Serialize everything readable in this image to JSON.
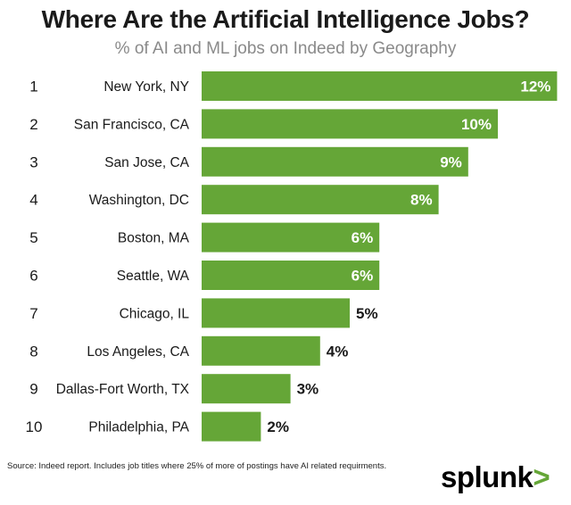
{
  "chart_data": {
    "type": "bar",
    "orientation": "horizontal",
    "title": "Where Are the Artificial Intelligence Jobs?",
    "subtitle": "% of AI and ML jobs on Indeed by Geography",
    "ranks": [
      "1",
      "2",
      "3",
      "4",
      "5",
      "6",
      "7",
      "8",
      "9",
      "10"
    ],
    "categories": [
      "New York, NY",
      "San Francisco, CA",
      "San Jose, CA",
      "Washington, DC",
      "Boston, MA",
      "Seattle, WA",
      "Chicago, IL",
      "Los Angeles, CA",
      "Dallas-Fort Worth, TX",
      "Philadelphia, PA"
    ],
    "values": [
      12,
      10,
      9,
      8,
      6,
      6,
      5,
      4,
      3,
      2
    ],
    "value_labels": [
      "12%",
      "10%",
      "9%",
      "8%",
      "6%",
      "6%",
      "5%",
      "4%",
      "3%",
      "2%"
    ],
    "bar_color": "#65a637",
    "grid": false,
    "legend": "none"
  },
  "footer": {
    "source": "Source: Indeed report. Includes job titles where 25% of more of postings have AI related requirments.",
    "logo_text": "splunk",
    "logo_mark": ">",
    "logo_color": "#65a637"
  }
}
